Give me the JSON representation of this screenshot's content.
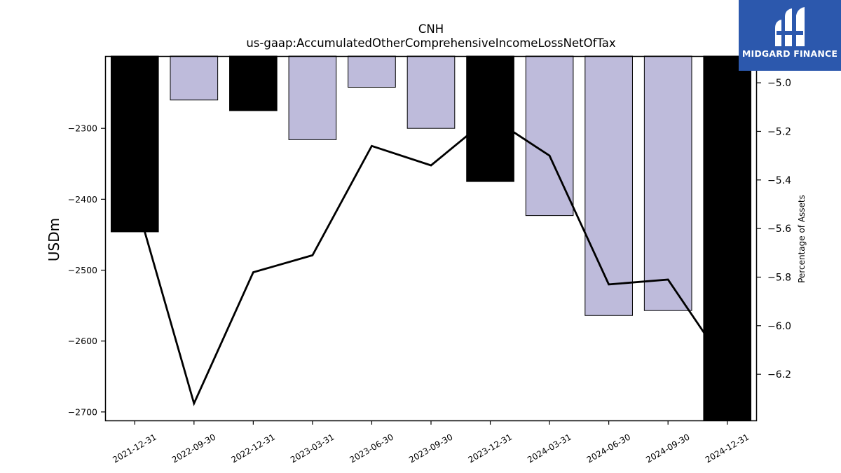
{
  "chart_data": {
    "type": "bar",
    "title": "CNH",
    "subtitle": "us-gaap:AccumulatedOtherComprehensiveIncomeLossNetOfTax",
    "ylabel": "USDm",
    "y2label": "Percentage of Assets",
    "categories": [
      "2021-12-31",
      "2022-09-30",
      "2022-12-31",
      "2023-03-31",
      "2023-06-30",
      "2023-09-30",
      "2023-12-31",
      "2024-03-31",
      "2024-06-30",
      "2024-09-30",
      "2024-12-31"
    ],
    "series": [
      {
        "chart": "bar",
        "axis": "left",
        "values": [
          -2446,
          -2260,
          -2275,
          -2316,
          -2242,
          -2300,
          -2375,
          -2423,
          -2564,
          -2557,
          -2715
        ],
        "colors": [
          "#000000",
          "#bebbdb",
          "#000000",
          "#bebbdb",
          "#bebbdb",
          "#bebbdb",
          "#000000",
          "#bebbdb",
          "#bebbdb",
          "#bebbdb",
          "#000000"
        ]
      },
      {
        "chart": "line",
        "axis": "right",
        "color": "#000000",
        "values": [
          -5.47,
          -6.32,
          -5.78,
          -5.71,
          -5.26,
          -5.34,
          -5.14,
          -5.3,
          -5.83,
          -5.81,
          -6.17
        ]
      }
    ],
    "ylim": [
      -2712,
      -2198
    ],
    "y2lim": [
      -6.39,
      -4.89
    ],
    "yticks": [
      -2300,
      -2400,
      -2500,
      -2600,
      -2700
    ],
    "y2ticks": [
      -5.0,
      -5.2,
      -5.4,
      -5.6,
      -5.8,
      -6.0,
      -6.2
    ],
    "grid": false
  },
  "logo": {
    "text": "MIDGARD FINANCE",
    "bg": "#2c58ad"
  }
}
